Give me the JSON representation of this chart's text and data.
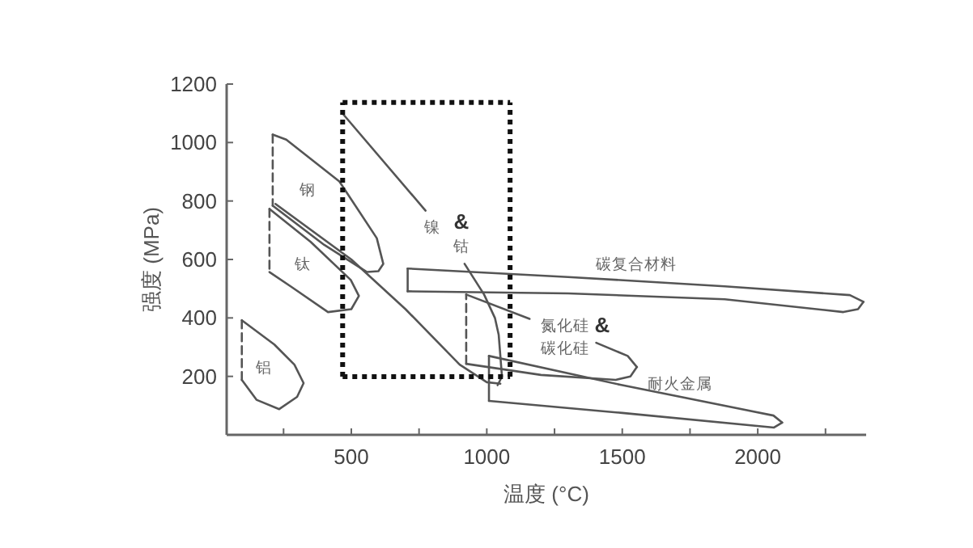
{
  "chart_data": {
    "type": "line",
    "xlabel": "温度 (°C)",
    "ylabel": "强度 (MPa)",
    "xlim": [
      40,
      2400
    ],
    "ylim": [
      0,
      1200
    ],
    "xticks": [
      {
        "value": 250,
        "label": null
      },
      500,
      {
        "value": 750,
        "label": null
      },
      1000,
      {
        "value": 1250,
        "label": null
      },
      1500,
      {
        "value": 1750,
        "label": null
      },
      2000,
      {
        "value": 2250,
        "label": null
      }
    ],
    "yticks": [
      200,
      400,
      600,
      800,
      1000,
      1200
    ],
    "series": [
      {
        "color": "#555555",
        "line_style": "dashed",
        "x": [
          96,
          96
        ],
        "values": [
          392,
          188
        ]
      },
      {
        "color": "#555555",
        "line_style": "solid",
        "x": [
          96,
          150,
          234,
          300,
          324,
          290,
          216,
          96
        ],
        "values": [
          188,
          120,
          88,
          130,
          177,
          240,
          309,
          392
        ]
      },
      {
        "color": "#555555",
        "line_style": "dashed",
        "x": [
          210,
          210
        ],
        "values": [
          1027,
          784
        ]
      },
      {
        "color": "#555555",
        "line_style": "solid",
        "x": [
          210,
          260,
          456,
          594,
          618,
          600,
          558,
          400,
          210
        ],
        "values": [
          1027,
          1010,
          867,
          673,
          585,
          560,
          557,
          650,
          784
        ]
      },
      {
        "color": "#555555",
        "line_style": "dashed",
        "x": [
          198,
          198
        ],
        "values": [
          773,
          557
        ]
      },
      {
        "color": "#555555",
        "line_style": "solid",
        "x": [
          198,
          350,
          498,
          528,
          500,
          414,
          276,
          198
        ],
        "values": [
          773,
          660,
          530,
          475,
          430,
          420,
          508,
          557
        ]
      },
      {
        "color": "#555555",
        "line_style": "solid",
        "x": [
          220,
          500,
          700,
          900,
          1000,
          1050
        ],
        "values": [
          790,
          600,
          430,
          240,
          180,
          175
        ]
      },
      {
        "color": "#555555",
        "line_style": "solid",
        "x": [
          468,
          774
        ],
        "values": [
          1099,
          767
        ]
      },
      {
        "color": "#555555",
        "line_style": "solid",
        "x": [
          918,
          990,
          1030,
          1044,
          1056,
          1040
        ],
        "values": [
          585,
          480,
          400,
          342,
          199,
          170
        ]
      },
      {
        "color": "#555555",
        "line_style": "solid",
        "x": [
          708,
          708
        ],
        "values": [
          491,
          569
        ]
      },
      {
        "color": "#555555",
        "line_style": "solid",
        "x": [
          708,
          1300,
          1878,
          2340,
          2390
        ],
        "values": [
          569,
          540,
          508,
          478,
          455
        ]
      },
      {
        "color": "#555555",
        "line_style": "solid",
        "x": [
          708,
          1300,
          1878,
          2316,
          2370,
          2390
        ],
        "values": [
          491,
          484,
          464,
          420,
          430,
          455
        ]
      },
      {
        "color": "#555555",
        "line_style": "dashed",
        "x": [
          924,
          924
        ],
        "values": [
          243,
          480
        ]
      },
      {
        "color": "#555555",
        "line_style": "solid",
        "x": [
          924,
          1158
        ],
        "values": [
          480,
          397
        ]
      },
      {
        "color": "#555555",
        "line_style": "solid",
        "x": [
          1404,
          1520,
          1554
        ],
        "values": [
          315,
          270,
          232
        ]
      },
      {
        "color": "#555555",
        "line_style": "solid",
        "x": [
          924,
          1200,
          1476,
          1530,
          1554
        ],
        "values": [
          243,
          205,
          188,
          200,
          232
        ]
      },
      {
        "color": "#555555",
        "line_style": "solid",
        "x": [
          1008,
          1008
        ],
        "values": [
          116,
          270
        ]
      },
      {
        "color": "#555555",
        "line_style": "solid",
        "x": [
          1008,
          1500,
          2058,
          2090
        ],
        "values": [
          270,
          170,
          66,
          42
        ]
      },
      {
        "color": "#555555",
        "line_style": "solid",
        "x": [
          1008,
          1500,
          2060,
          2090
        ],
        "values": [
          116,
          75,
          25,
          42
        ]
      },
      {
        "color": "#111111",
        "line_style": "dotted",
        "x": [
          468,
          1086
        ],
        "values": [
          1137,
          1137
        ]
      },
      {
        "color": "#111111",
        "line_style": "dotted",
        "x": [
          468,
          1086
        ],
        "values": [
          199,
          199
        ]
      },
      {
        "color": "#111111",
        "line_style": "dotted",
        "x": [
          468,
          468
        ],
        "values": [
          199,
          1137
        ]
      },
      {
        "color": "#111111",
        "line_style": "dotted",
        "x": [
          1086,
          1086
        ],
        "values": [
          199,
          1137
        ]
      }
    ],
    "annotations": [
      "铝",
      "钢",
      "钛",
      "镍",
      "&",
      "钴",
      "氮化硅",
      "&",
      "碳化硅",
      "碳复合材料",
      "耐火金属"
    ]
  }
}
